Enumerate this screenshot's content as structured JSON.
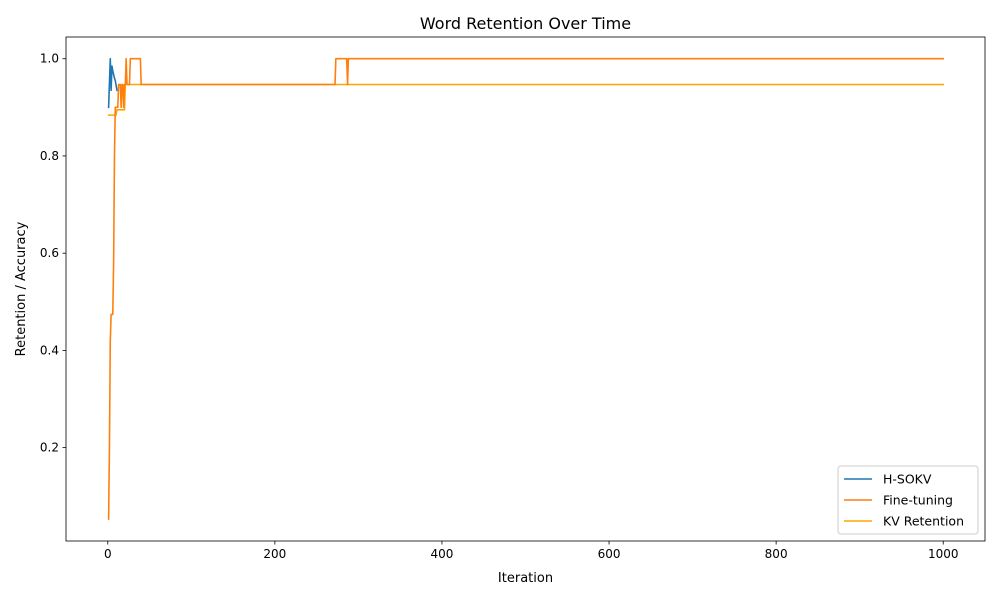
{
  "chart_data": {
    "type": "line",
    "title": "Word Retention Over Time",
    "xlabel": "Iteration",
    "ylabel": "Retention / Accuracy",
    "xlim": [
      -50,
      1050
    ],
    "ylim": [
      0.0079,
      1.0447
    ],
    "xticks": [
      0,
      200,
      400,
      600,
      800,
      1000
    ],
    "xtick_labels": [
      "0",
      "200",
      "400",
      "600",
      "800",
      "1000"
    ],
    "yticks": [
      0.2,
      0.4,
      0.6,
      0.8,
      1.0
    ],
    "ytick_labels": [
      "0.2",
      "0.4",
      "0.6",
      "0.8",
      "1.0"
    ],
    "grid": false,
    "legend_position": "lower-right",
    "series": [
      {
        "name": "H-SOKV",
        "color": "#1f77b4",
        "points": [
          [
            1,
            0.9
          ],
          [
            2,
            0.95
          ],
          [
            3,
            1.0
          ],
          [
            4,
            0.935
          ],
          [
            5,
            0.985
          ],
          [
            6,
            0.975
          ],
          [
            8,
            0.96
          ],
          [
            9,
            0.955
          ],
          [
            10,
            0.945
          ],
          [
            11,
            0.935
          ]
        ]
      },
      {
        "name": "Fine-tuning",
        "color": "#ff7f0e",
        "points": [
          [
            1,
            0.053
          ],
          [
            2,
            0.2
          ],
          [
            3,
            0.42
          ],
          [
            4,
            0.474
          ],
          [
            5,
            0.474
          ],
          [
            6,
            0.474
          ],
          [
            7,
            0.58
          ],
          [
            8,
            0.8
          ],
          [
            9,
            0.9
          ],
          [
            10,
            0.9
          ],
          [
            12,
            0.9
          ],
          [
            13,
            0.947
          ],
          [
            15,
            0.947
          ],
          [
            16,
            0.9
          ],
          [
            17,
            0.947
          ],
          [
            18,
            0.947
          ],
          [
            19,
            0.9
          ],
          [
            20,
            0.947
          ],
          [
            21,
            0.947
          ],
          [
            22,
            1.0
          ],
          [
            23,
            0.947
          ],
          [
            26,
            0.947
          ],
          [
            27,
            1.0
          ],
          [
            39,
            1.0
          ],
          [
            40,
            0.947
          ],
          [
            272,
            0.947
          ],
          [
            273,
            1.0
          ],
          [
            286,
            1.0
          ],
          [
            287,
            0.947
          ],
          [
            288,
            1.0
          ],
          [
            1000,
            1.0
          ]
        ]
      },
      {
        "name": "KV Retention",
        "color": "#ffa500",
        "points": [
          [
            1,
            0.884
          ],
          [
            10,
            0.884
          ],
          [
            11,
            0.895
          ],
          [
            20,
            0.895
          ],
          [
            21,
            0.947
          ],
          [
            1000,
            0.947
          ]
        ]
      }
    ]
  }
}
